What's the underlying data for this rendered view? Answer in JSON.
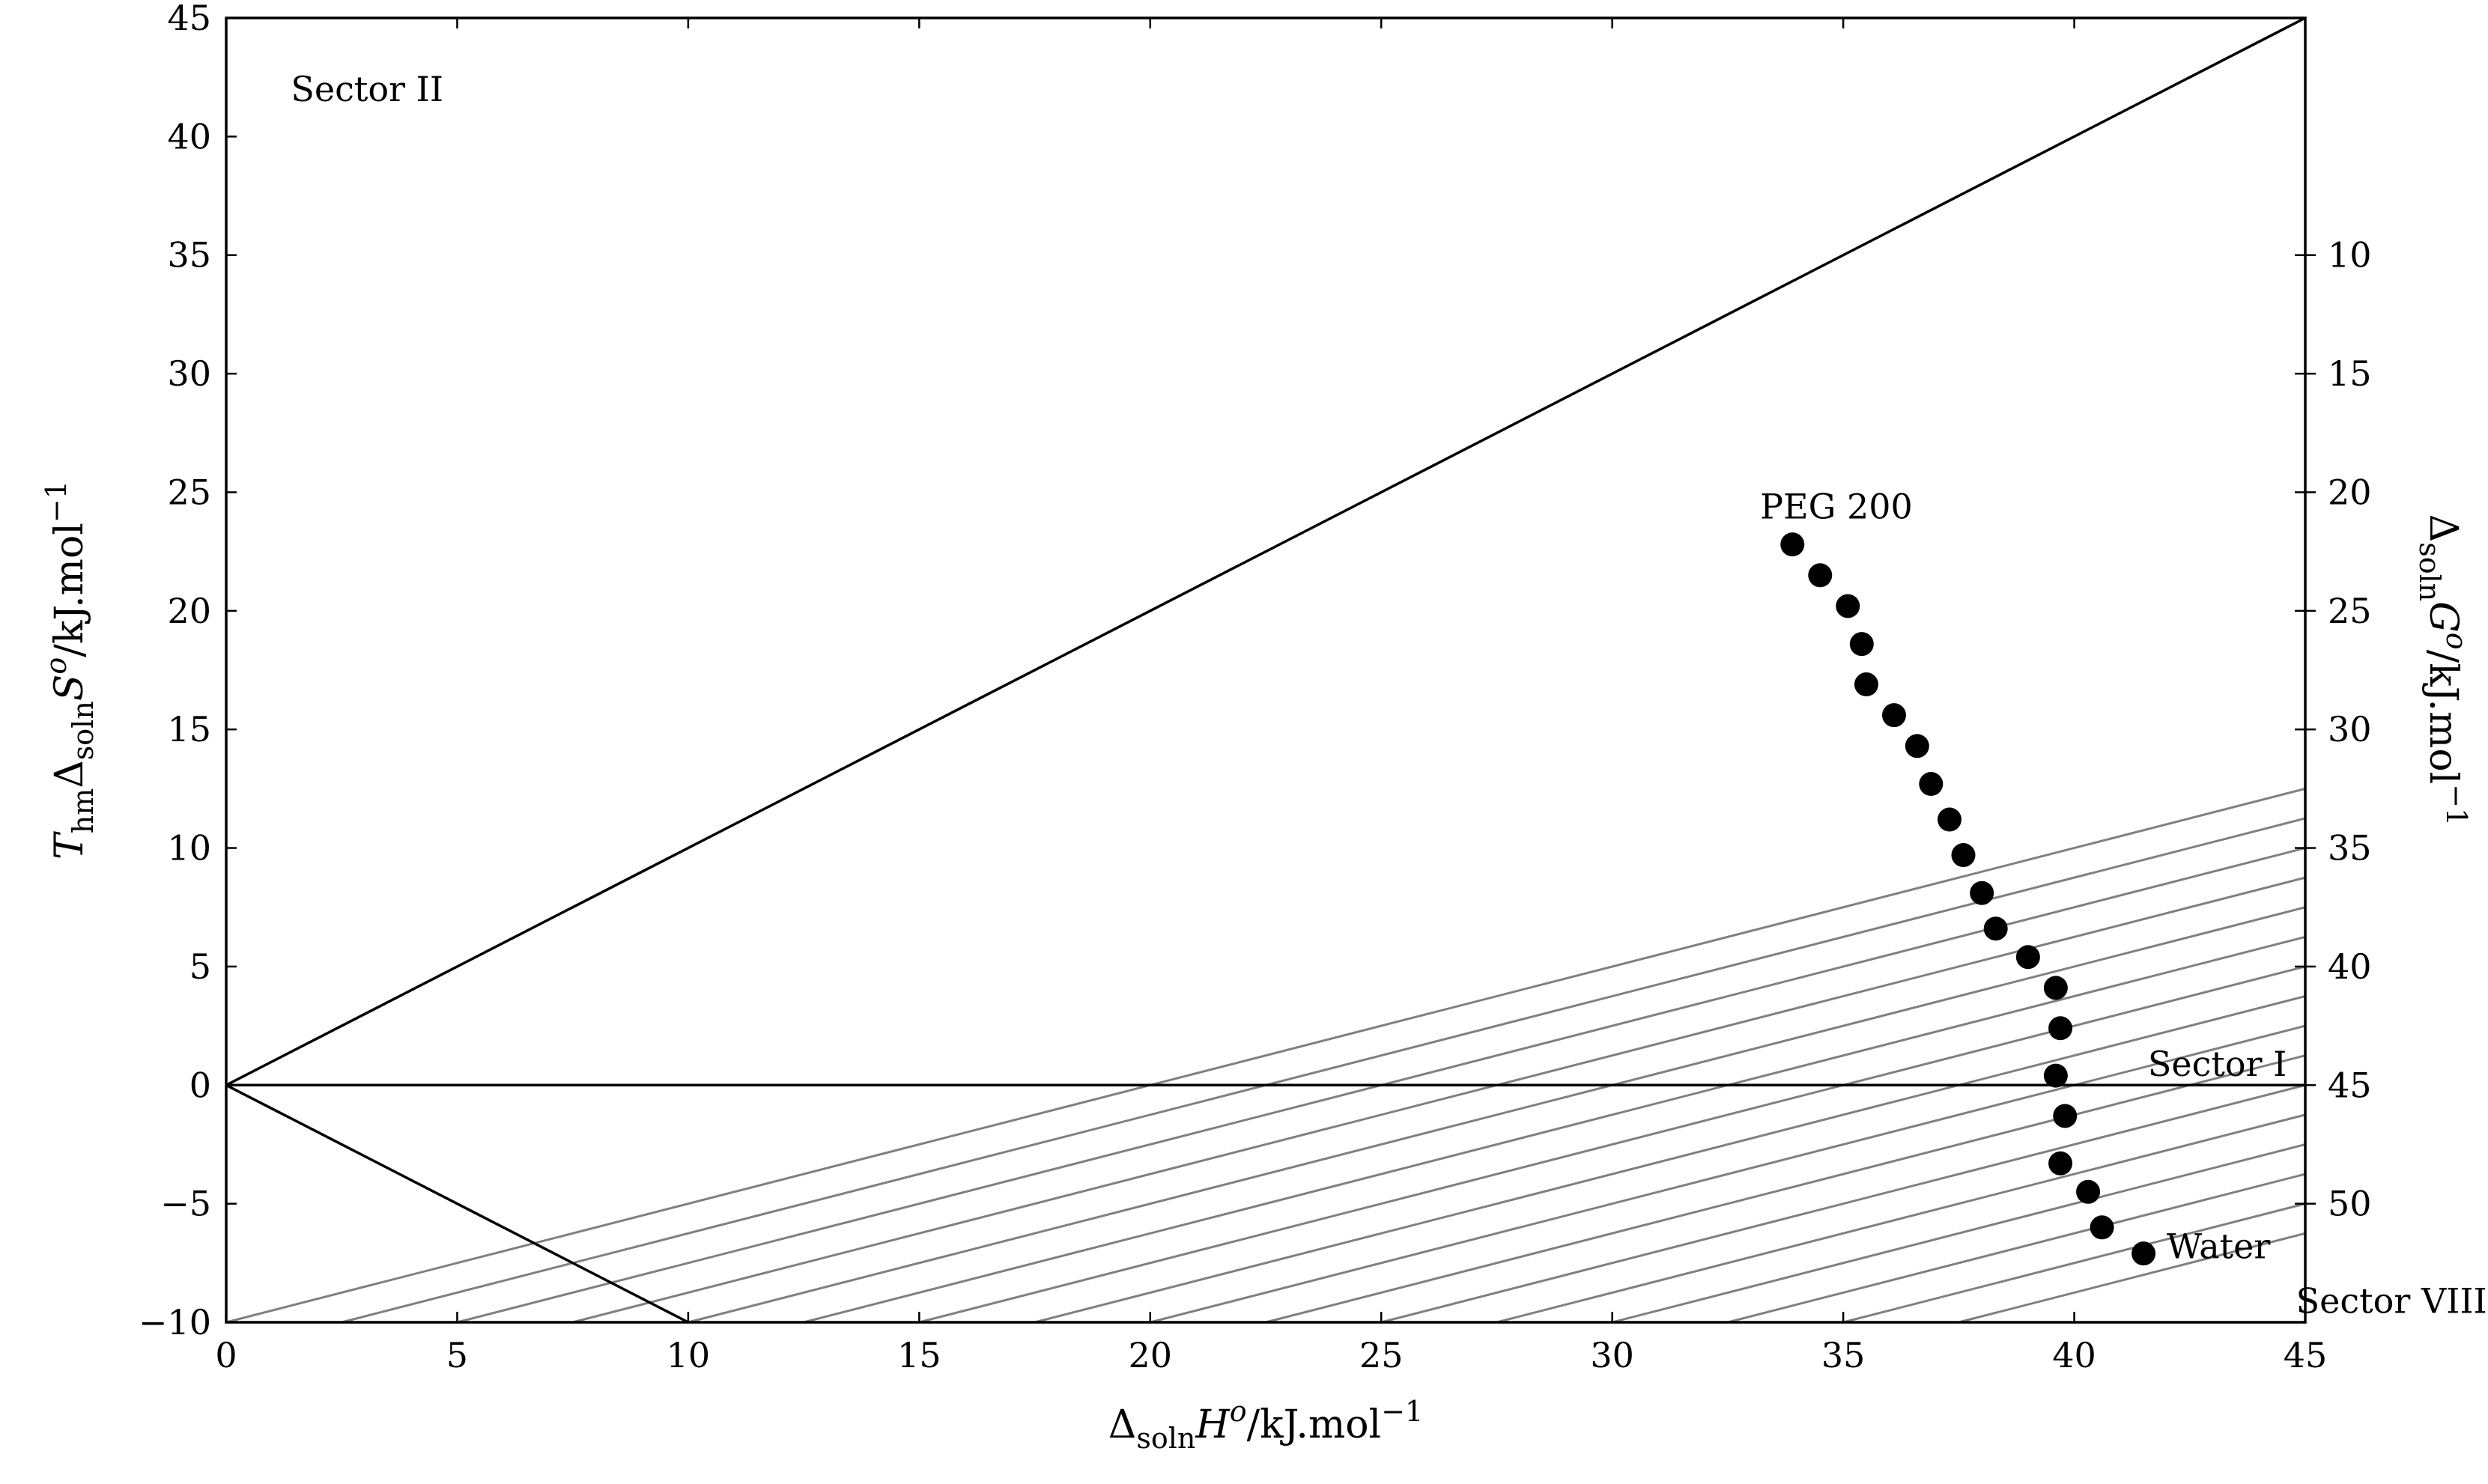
{
  "chart_data": {
    "type": "scatter",
    "title": "",
    "xlabel": {
      "main": "Δ",
      "sub": "soln",
      "after": "H",
      "sup": "o",
      "unit": "/kJ.mol",
      "unit_sup": "−1"
    },
    "ylabel": {
      "pre": "T",
      "pre_sub": "hm",
      "main": "Δ",
      "sub": "soln",
      "after": "S",
      "sup": "o",
      "unit": "/kJ.mol",
      "unit_sup": "−1"
    },
    "y2label": {
      "main": "Δ",
      "sub": "soln",
      "after": "G",
      "sup": "o",
      "unit": "/kJ.mol",
      "unit_sup": "−1"
    },
    "xlim": [
      0,
      45
    ],
    "ylim": [
      -10,
      45
    ],
    "x_ticks": [
      "0",
      "5",
      "10",
      "15",
      "20",
      "25",
      "30",
      "35",
      "40",
      "45"
    ],
    "y_ticks": [
      "−10",
      "−5",
      "0",
      "5",
      "10",
      "15",
      "20",
      "25",
      "30",
      "35",
      "40",
      "45"
    ],
    "y2_ticks": [
      {
        "label": "10",
        "y": 35
      },
      {
        "label": "15",
        "y": 30
      },
      {
        "label": "20",
        "y": 25
      },
      {
        "label": "25",
        "y": 20
      },
      {
        "label": "30",
        "y": 15
      },
      {
        "label": "35",
        "y": 10
      },
      {
        "label": "40",
        "y": 5
      },
      {
        "label": "45",
        "y": 0
      },
      {
        "label": "50",
        "y": -5
      }
    ],
    "reference_lines": [
      {
        "kind": "enthalpy-entropy-equal",
        "x": [
          0,
          45
        ],
        "y": [
          0,
          45
        ]
      },
      {
        "kind": "zero-entropy",
        "x": [
          0,
          45
        ],
        "y": [
          0,
          0
        ]
      },
      {
        "kind": "sector-boundary",
        "x": [
          0,
          10
        ],
        "y": [
          0,
          -10
        ]
      }
    ],
    "iso_gibbs_lines": {
      "slope": 0.5,
      "x_intercepts": [
        0,
        2.5,
        5,
        7.5,
        10,
        12.5,
        15,
        17.5,
        20,
        22.5,
        25,
        27.5,
        30,
        32.5,
        35,
        37.5
      ]
    },
    "series": [
      {
        "x": [
          33.9,
          34.5,
          35.1,
          35.4,
          35.5,
          36.1,
          36.6,
          36.9,
          37.3,
          37.6,
          38.0,
          38.3,
          39.0,
          39.6,
          39.7,
          39.6,
          39.8,
          39.7,
          40.3,
          40.6,
          41.5
        ],
        "y": [
          22.8,
          21.5,
          20.2,
          18.6,
          16.9,
          15.6,
          14.3,
          12.7,
          11.2,
          9.7,
          8.1,
          6.6,
          5.4,
          4.1,
          2.4,
          0.4,
          -1.3,
          -3.3,
          -4.5,
          -6.0,
          -7.1
        ]
      }
    ],
    "annotations": [
      {
        "text": "Sector II",
        "x": 1.4,
        "y": 42.0
      },
      {
        "text": "Sector I",
        "x": 44.6,
        "y": 0.9
      },
      {
        "text": "Sector VIII",
        "x": 44.8,
        "y": -9.1
      },
      {
        "text": "PEG 200",
        "x": 33.2,
        "y": 24.4
      },
      {
        "text": "Water",
        "x": 42.0,
        "y": -6.8
      }
    ],
    "grid": false,
    "legend": "none"
  }
}
